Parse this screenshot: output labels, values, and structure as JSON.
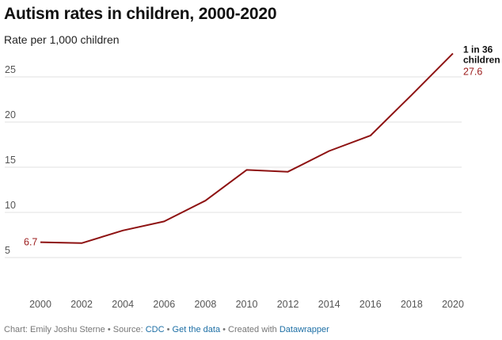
{
  "header": {
    "title": "Autism rates in children, 2000-2020",
    "subtitle": "Rate per 1,000 children"
  },
  "chart_data": {
    "type": "line",
    "title": "Autism rates in children, 2000-2020",
    "ylabel": "Rate per 1,000 children",
    "xlabel": "",
    "x": [
      2000,
      2002,
      2004,
      2006,
      2008,
      2010,
      2012,
      2014,
      2016,
      2018,
      2020
    ],
    "series": [
      {
        "name": "Autism rate per 1,000 children",
        "color": "#8e1212",
        "values": [
          6.7,
          6.6,
          8.0,
          9.0,
          11.3,
          14.7,
          14.5,
          16.8,
          18.5,
          23.0,
          27.6
        ]
      }
    ],
    "xlim": [
      2000,
      2020
    ],
    "ylim": [
      0,
      30
    ],
    "yticks": [
      5,
      10,
      15,
      20,
      25
    ],
    "xticks": [
      2000,
      2002,
      2004,
      2006,
      2008,
      2010,
      2012,
      2014,
      2016,
      2018,
      2020
    ],
    "grid": true,
    "labels": {
      "start_value": "6.7",
      "end_value": "27.6",
      "end_annotation_line1": "1 in 36",
      "end_annotation_line2": "children"
    }
  },
  "footer": {
    "prefix": "Chart: Emily Joshu Sterne • Source: ",
    "source_link": "CDC",
    "sep1": " • ",
    "data_link": "Get the data",
    "sep2": " • Created with ",
    "tool_link": "Datawrapper"
  }
}
